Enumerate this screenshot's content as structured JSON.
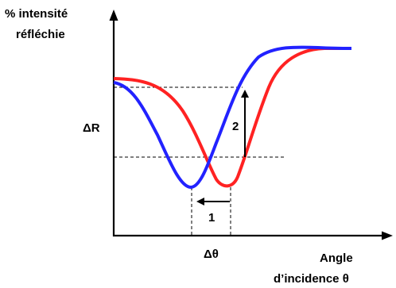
{
  "labels": {
    "y_axis_line1": "% intensité",
    "y_axis_line2": "réfléchie",
    "x_axis_line1": "Angle",
    "x_axis_line2": "d’incidence θ",
    "delta_r": "ΔR",
    "delta_theta": "Δθ",
    "step_1": "1",
    "step_2": "2"
  },
  "curves": [
    {
      "name": "blue-curve",
      "color": "#2222ff"
    },
    {
      "name": "red-curve",
      "color": "#ff2222"
    }
  ],
  "colors": {
    "axis": "#000000",
    "dashed": "#000000",
    "arrows": "#000000"
  }
}
